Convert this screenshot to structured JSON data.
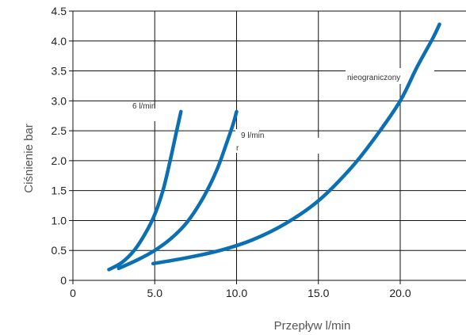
{
  "chart_data": {
    "type": "line",
    "title": "",
    "xlabel": "Przepływ  l/min",
    "ylabel": "Ciśnienie  bar",
    "xlim": [
      0,
      23
    ],
    "ylim": [
      0,
      4.5
    ],
    "x_ticks": [
      "0",
      "5.0",
      "10.0",
      "15.0",
      "20.0"
    ],
    "x_tick_values": [
      0,
      5,
      10,
      15,
      20
    ],
    "y_ticks": [
      "0",
      "0.5",
      "1.0",
      "1.5",
      "2.0",
      "2.5",
      "3.0",
      "3.5",
      "4.0",
      "4.5"
    ],
    "y_tick_values": [
      0,
      0.5,
      1.0,
      1.5,
      2.0,
      2.5,
      3.0,
      3.5,
      4.0,
      4.5
    ],
    "grid": true,
    "series": [
      {
        "label_text": "6 l/min",
        "color": "#0b6fb3",
        "x": [
          2.2,
          3.0,
          3.8,
          4.5,
          5.0,
          5.5,
          5.9,
          6.3,
          6.6
        ],
        "y": [
          0.18,
          0.3,
          0.52,
          0.82,
          1.1,
          1.5,
          1.95,
          2.45,
          2.82
        ]
      },
      {
        "label_text": "9 l/min",
        "color": "#0b6fb3",
        "x": [
          2.8,
          4.0,
          5.0,
          6.0,
          7.0,
          8.0,
          8.8,
          9.4,
          9.8,
          10.0
        ],
        "y": [
          0.2,
          0.35,
          0.5,
          0.7,
          0.98,
          1.4,
          1.85,
          2.3,
          2.62,
          2.82
        ]
      },
      {
        "label_text": "nieograniczony",
        "color": "#0b6fb3",
        "x": [
          4.9,
          7.0,
          9.0,
          11.0,
          13.0,
          15.0,
          17.0,
          18.5,
          20.0,
          21.0,
          22.0,
          22.4
        ],
        "y": [
          0.28,
          0.38,
          0.5,
          0.68,
          0.95,
          1.33,
          1.88,
          2.4,
          3.0,
          3.55,
          4.05,
          4.28
        ]
      }
    ],
    "annotations": [
      {
        "text": "r",
        "x": 10.0,
        "y": 2.22
      }
    ]
  }
}
